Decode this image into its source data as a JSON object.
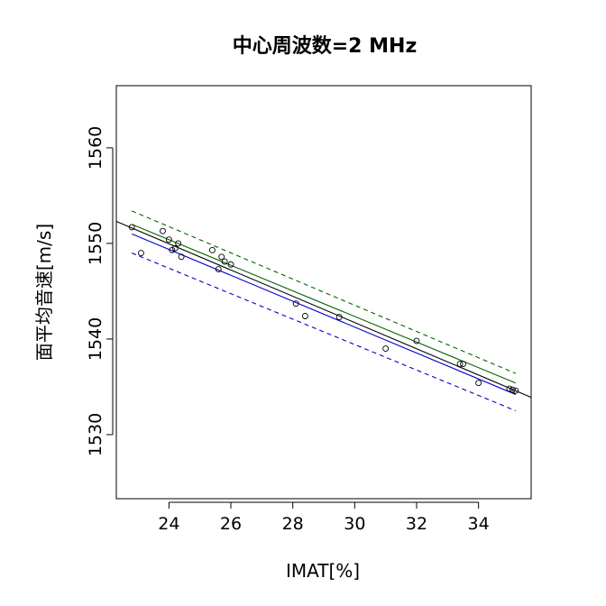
{
  "chart_data": {
    "type": "scatter",
    "title": "中心周波数=2 MHz",
    "xlabel": "IMAT[%]",
    "ylabel": "面平均音速[m/s]",
    "xlim": [
      22.3,
      35.7
    ],
    "ylim": [
      1523.3,
      1566.5
    ],
    "x_ticks": [
      24,
      26,
      28,
      30,
      32,
      34
    ],
    "y_ticks": [
      1530,
      1540,
      1550,
      1560
    ],
    "grid": false,
    "legend": "none",
    "points": [
      {
        "x": 22.8,
        "y": 1551.7
      },
      {
        "x": 23.1,
        "y": 1549.0
      },
      {
        "x": 23.8,
        "y": 1551.3
      },
      {
        "x": 24.0,
        "y": 1550.4
      },
      {
        "x": 24.1,
        "y": 1549.3
      },
      {
        "x": 24.2,
        "y": 1549.5
      },
      {
        "x": 24.3,
        "y": 1550.0
      },
      {
        "x": 24.4,
        "y": 1548.6
      },
      {
        "x": 25.4,
        "y": 1549.3
      },
      {
        "x": 25.6,
        "y": 1547.3
      },
      {
        "x": 25.7,
        "y": 1548.6
      },
      {
        "x": 25.8,
        "y": 1548.1
      },
      {
        "x": 26.0,
        "y": 1547.8
      },
      {
        "x": 28.1,
        "y": 1543.7
      },
      {
        "x": 28.4,
        "y": 1542.4
      },
      {
        "x": 29.5,
        "y": 1542.3
      },
      {
        "x": 31.0,
        "y": 1539.0
      },
      {
        "x": 32.0,
        "y": 1539.8
      },
      {
        "x": 33.4,
        "y": 1537.4
      },
      {
        "x": 33.5,
        "y": 1537.4
      },
      {
        "x": 34.0,
        "y": 1535.4
      },
      {
        "x": 35.0,
        "y": 1534.8
      },
      {
        "x": 35.1,
        "y": 1534.7
      },
      {
        "x": 35.2,
        "y": 1534.6
      }
    ],
    "lines": [
      {
        "style": "solid",
        "color": "#000000",
        "x": [
          22.3,
          35.7
        ],
        "y": [
          1552.3,
          1533.9
        ]
      },
      {
        "style": "solid",
        "color": "#006400",
        "x": [
          22.8,
          35.2
        ],
        "y": [
          1552.0,
          1535.4
        ]
      },
      {
        "style": "dashed",
        "color": "#006400",
        "x": [
          22.8,
          35.2
        ],
        "y": [
          1553.4,
          1536.4
        ]
      },
      {
        "style": "solid",
        "color": "#0000cd",
        "x": [
          22.8,
          35.2
        ],
        "y": [
          1551.0,
          1534.2
        ]
      },
      {
        "style": "dashed",
        "color": "#0000cd",
        "x": [
          22.8,
          35.2
        ],
        "y": [
          1549.0,
          1532.5
        ]
      }
    ]
  }
}
